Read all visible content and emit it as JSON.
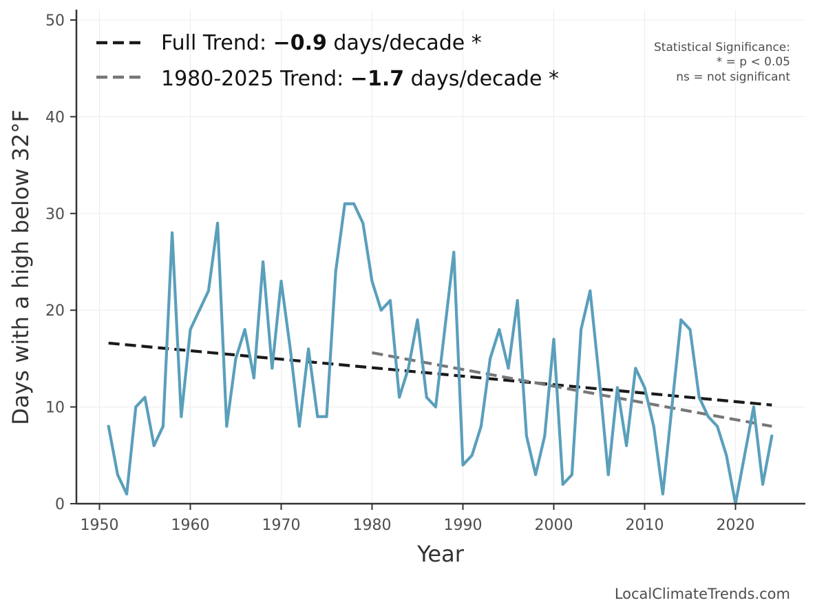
{
  "chart_data": {
    "type": "line",
    "xlabel": "Year",
    "ylabel": "Days with a high below 32°F",
    "xlim": [
      1947.5,
      1928
    ],
    "ylim": [
      0,
      51
    ],
    "x_ticks": [
      "1950",
      "1960",
      "1970",
      "1980",
      "1990",
      "2000",
      "2010",
      "2020"
    ],
    "y_ticks": [
      "0",
      "10",
      "20",
      "30",
      "40",
      "50"
    ],
    "grid": true,
    "legend_position": "top-left",
    "series": [
      {
        "color": "#5a9fbb",
        "x": [
          1951,
          1952,
          1953,
          1954,
          1955,
          1956,
          1957,
          1958,
          1959,
          1960,
          1961,
          1962,
          1963,
          1964,
          1965,
          1966,
          1967,
          1968,
          1969,
          1970,
          1971,
          1972,
          1973,
          1974,
          1975,
          1976,
          1977,
          1978,
          1979,
          1980,
          1981,
          1982,
          1983,
          1984,
          1985,
          1986,
          1987,
          1988,
          1989,
          1990,
          1991,
          1992,
          1993,
          1994,
          1995,
          1996,
          1997,
          1998,
          1999,
          2000,
          2001,
          2002,
          2003,
          2004,
          2005,
          2006,
          2007,
          2008,
          2009,
          2010,
          2011,
          2012,
          2013,
          2014,
          2015,
          2016,
          2017,
          2018,
          2019,
          2020,
          2021,
          2022,
          2023,
          2024
        ],
        "values": [
          8,
          3,
          1,
          10,
          11,
          6,
          8,
          28,
          9,
          18,
          20,
          22,
          29,
          8,
          15,
          18,
          13,
          25,
          14,
          23,
          16,
          8,
          16,
          9,
          9,
          24,
          31,
          31,
          29,
          23,
          20,
          21,
          11,
          14,
          19,
          11,
          10,
          18,
          26,
          4,
          5,
          8,
          15,
          18,
          14,
          21,
          7,
          3,
          7,
          17,
          2,
          3,
          18,
          22,
          13,
          3,
          12,
          6,
          14,
          12,
          8,
          1,
          10,
          19,
          18,
          11,
          9,
          8,
          5,
          0,
          5,
          10,
          2,
          7
        ]
      }
    ],
    "trends": [
      {
        "label": "Full Trend: ",
        "value": "−0.9",
        "suffix": " days/decade *",
        "color": "#1a1a1a",
        "x": [
          1951,
          2024
        ],
        "y": [
          16.6,
          10.2
        ]
      },
      {
        "label": "1980-2025 Trend: ",
        "value": "−1.7",
        "suffix": " days/decade *",
        "color": "#777777",
        "x": [
          1980,
          2024
        ],
        "y": [
          15.6,
          8.0
        ]
      }
    ]
  },
  "significance": {
    "title": "Statistical Significance:",
    "line1": "* = p < 0.05",
    "line2": "ns = not significant"
  },
  "source": "LocalClimateTrends.com"
}
